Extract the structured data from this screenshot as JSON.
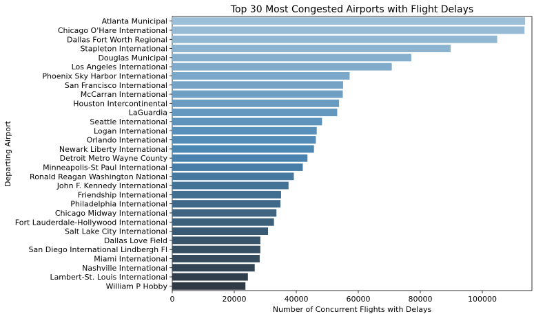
{
  "chart_data": {
    "type": "bar",
    "orientation": "horizontal",
    "title": "Top 30 Most Congested Airports with Flight Delays",
    "xlabel": "Number of Concurrent Flights with Delays",
    "ylabel": "Departing Airport",
    "xlim": [
      0,
      116000
    ],
    "xticks": [
      0,
      20000,
      40000,
      60000,
      80000,
      100000
    ],
    "xtick_labels": [
      "0",
      "20000",
      "40000",
      "60000",
      "80000",
      "100000"
    ],
    "grid": false,
    "categories": [
      "Atlanta Municipal",
      "Chicago O'Hare International",
      "Dallas Fort Worth Regional",
      "Stapleton International",
      "Douglas Municipal",
      "Los Angeles International",
      "Phoenix Sky Harbor International",
      "San Francisco International",
      "McCarran International",
      "Houston Intercontinental",
      "LaGuardia",
      "Seattle International",
      "Logan International",
      "Orlando International",
      "Newark Liberty International",
      "Detroit Metro Wayne County",
      "Minneapolis-St Paul International",
      "Ronald Reagan Washington National",
      "John F. Kennedy International",
      "Friendship International",
      "Philadelphia International",
      "Chicago Midway International",
      "Fort Lauderdale-Hollywood International",
      "Salt Lake City International",
      "Dallas Love Field",
      "San Diego International Lindbergh Fl",
      "Miami International",
      "Nashville International",
      "Lambert-St. Louis International",
      "William P Hobby"
    ],
    "values": [
      113800,
      113600,
      104800,
      89800,
      77100,
      70800,
      57200,
      55100,
      55000,
      53800,
      53200,
      48300,
      46600,
      46300,
      45700,
      43600,
      42100,
      39200,
      37500,
      35100,
      34900,
      33600,
      32800,
      30900,
      28400,
      28400,
      28200,
      26600,
      24400,
      23600
    ],
    "colors": {
      "bar_start": "#9dbfd8",
      "bar_middle": "#4a86b2",
      "bar_end": "#2f3a45",
      "axis": "#000000",
      "text": "#000000"
    }
  }
}
